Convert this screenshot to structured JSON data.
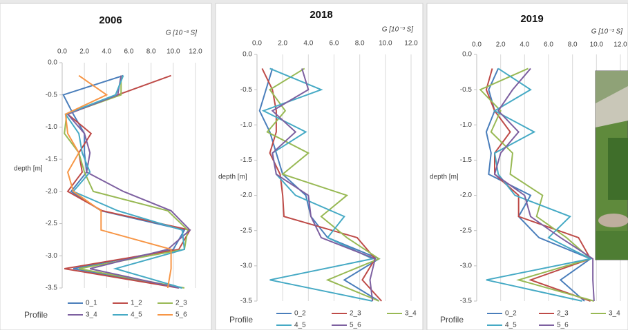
{
  "chart_data": [
    {
      "type": "line",
      "title": "2006",
      "x_label": "G [10⁻³ S]",
      "y_label": "depth [m]",
      "legend_title": "Profile",
      "y": [
        -0.2,
        -0.5,
        -0.8,
        -1.1,
        -1.4,
        -1.7,
        -2.0,
        -2.3,
        -2.6,
        -2.9,
        -3.2,
        -3.5
      ],
      "series": [
        {
          "name": "0_1",
          "color": "#4a7ebb",
          "values": [
            5.5,
            0.1,
            1.0,
            2.0,
            2.0,
            2.2,
            0.8,
            3.5,
            11.0,
            10.0,
            1.0,
            10.8
          ]
        },
        {
          "name": "1_2",
          "color": "#be4b48",
          "values": [
            9.8,
            5.0,
            0.5,
            2.6,
            1.5,
            1.8,
            0.5,
            3.6,
            11.5,
            10.5,
            0.2,
            10.5
          ]
        },
        {
          "name": "2_3",
          "color": "#98b954",
          "values": [
            5.3,
            5.3,
            0.4,
            0.2,
            1.5,
            2.0,
            2.8,
            9.5,
            11.3,
            11.0,
            1.5,
            11.0
          ]
        },
        {
          "name": "3_4",
          "color": "#7d60a0",
          "values": [
            5.3,
            5.0,
            0.5,
            2.0,
            2.5,
            2.2,
            5.5,
            9.8,
            11.5,
            9.5,
            2.5,
            10.5
          ]
        },
        {
          "name": "4_5",
          "color": "#46aac5",
          "values": [
            5.5,
            4.8,
            0.3,
            1.5,
            1.8,
            2.5,
            1.0,
            5.0,
            10.8,
            11.0,
            4.8,
            10.8
          ]
        },
        {
          "name": "5_6",
          "color": "#f79646",
          "values": [
            1.5,
            4.0,
            0.3,
            0.5,
            1.5,
            0.5,
            1.0,
            3.5,
            3.5,
            9.8,
            9.8,
            9.5
          ]
        }
      ],
      "xlim": [
        0,
        12
      ],
      "xticks": [
        {
          "value": 0,
          "label": "0.0"
        },
        {
          "value": 2,
          "label": "2.0"
        },
        {
          "value": 4,
          "label": "4.0"
        },
        {
          "value": 6,
          "label": "6.0"
        },
        {
          "value": 8,
          "label": "8.0"
        },
        {
          "value": 10,
          "label": "10.0"
        },
        {
          "value": 12,
          "label": "12.0"
        }
      ],
      "ylim": [
        -3.5,
        0
      ],
      "yticks": [
        {
          "value": 0,
          "label": "0.0"
        },
        -0.5,
        {
          "value": -1,
          "label": "-1.0"
        },
        -1.5,
        {
          "value": -2,
          "label": "-2.0"
        },
        -2.5,
        {
          "value": -3,
          "label": "-3.0"
        },
        -3.5
      ],
      "grid": true
    },
    {
      "type": "line",
      "title": "2018",
      "x_label": "G [10⁻³ S]",
      "y_label": "depth [m]",
      "legend_title": "Profile",
      "y": [
        -0.2,
        -0.5,
        -0.8,
        -1.1,
        -1.4,
        -1.7,
        -2.0,
        -2.3,
        -2.6,
        -2.9,
        -3.2,
        -3.5
      ],
      "series": [
        {
          "name": "0_2",
          "color": "#4a7ebb",
          "values": [
            1.2,
            0.7,
            0.2,
            1.0,
            1.5,
            2.0,
            3.8,
            4.2,
            5.5,
            9.5,
            6.8,
            9.5
          ]
        },
        {
          "name": "2_3",
          "color": "#be4b48",
          "values": [
            0.4,
            1.2,
            1.5,
            1.5,
            1.0,
            1.8,
            2.0,
            2.1,
            7.8,
            9.2,
            8.2,
            9.7
          ]
        },
        {
          "name": "3_4",
          "color": "#98b954",
          "values": [
            3.7,
            1.0,
            2.2,
            0.8,
            4.0,
            2.0,
            7.0,
            5.0,
            7.0,
            9.5,
            5.5,
            9.5
          ]
        },
        {
          "name": "4_5",
          "color": "#46aac5",
          "values": [
            1.0,
            5.0,
            0.5,
            3.8,
            1.2,
            1.5,
            3.0,
            6.8,
            5.5,
            9.0,
            1.0,
            9.0
          ]
        },
        {
          "name": "5_6",
          "color": "#7d60a0",
          "values": [
            3.5,
            4.0,
            1.2,
            3.0,
            1.2,
            1.5,
            4.0,
            4.2,
            5.0,
            9.2,
            8.8,
            9.0
          ]
        }
      ],
      "xlim": [
        0,
        12
      ],
      "xticks": [
        {
          "value": 0,
          "label": "0.0"
        },
        {
          "value": 2,
          "label": "2.0"
        },
        {
          "value": 4,
          "label": "4.0"
        },
        {
          "value": 6,
          "label": "6.0"
        },
        {
          "value": 8,
          "label": "8.0"
        },
        {
          "value": 10,
          "label": "10.0"
        },
        {
          "value": 12,
          "label": "12.0"
        }
      ],
      "ylim": [
        -3.5,
        0
      ],
      "yticks": [
        {
          "value": 0,
          "label": "0.0"
        },
        -0.5,
        {
          "value": -1,
          "label": "-1.0"
        },
        -1.5,
        {
          "value": -2,
          "label": "-2.0"
        },
        -2.5,
        {
          "value": -3,
          "label": "-3.0"
        },
        -3.5
      ],
      "grid": true
    },
    {
      "type": "line",
      "title": "2019",
      "x_label": "G [10⁻³ S]",
      "y_label": "depth [m]",
      "legend_title": "Profile",
      "y": [
        -0.2,
        -0.5,
        -0.8,
        -1.1,
        -1.4,
        -1.7,
        -2.0,
        -2.3,
        -2.6,
        -2.9,
        -3.2,
        -3.5
      ],
      "series": [
        {
          "name": "0_2",
          "color": "#4a7ebb",
          "values": [
            1.8,
            1.0,
            1.5,
            0.8,
            1.2,
            1.0,
            4.5,
            3.5,
            5.2,
            9.5,
            7.0,
            9.0
          ]
        },
        {
          "name": "2_3",
          "color": "#be4b48",
          "values": [
            1.3,
            0.8,
            1.5,
            2.8,
            1.5,
            1.5,
            3.5,
            3.5,
            8.5,
            9.5,
            4.5,
            9.5
          ]
        },
        {
          "name": "3_4",
          "color": "#98b954",
          "values": [
            4.3,
            0.3,
            2.0,
            1.2,
            3.0,
            2.8,
            5.5,
            5.0,
            7.5,
            9.5,
            3.5,
            9.8
          ]
        },
        {
          "name": "4_5",
          "color": "#46aac5",
          "values": [
            1.8,
            4.5,
            1.5,
            4.8,
            1.5,
            1.8,
            3.2,
            7.8,
            6.0,
            9.5,
            0.8,
            8.8
          ]
        },
        {
          "name": "5_6",
          "color": "#7d60a0",
          "values": [
            4.5,
            3.0,
            1.8,
            3.5,
            2.0,
            1.5,
            4.0,
            4.5,
            7.0,
            9.7,
            9.7,
            9.8
          ]
        }
      ],
      "xlim": [
        0,
        12
      ],
      "xticks": [
        {
          "value": 0,
          "label": "0.0"
        },
        {
          "value": 2,
          "label": "2.0"
        },
        {
          "value": 4,
          "label": "4.0"
        },
        {
          "value": 6,
          "label": "6.0"
        },
        {
          "value": 8,
          "label": "8.0"
        },
        {
          "value": 10,
          "label": "10.0"
        },
        {
          "value": 12,
          "label": "12.0"
        }
      ],
      "ylim": [
        -3.5,
        0
      ],
      "yticks": [
        {
          "value": 0,
          "label": "0.0"
        },
        -0.5,
        {
          "value": -1,
          "label": "-1.0"
        },
        -1.5,
        {
          "value": -2,
          "label": "-2.0"
        },
        -2.5,
        {
          "value": -3,
          "label": "-3.0"
        },
        -3.5
      ],
      "grid": true
    }
  ]
}
